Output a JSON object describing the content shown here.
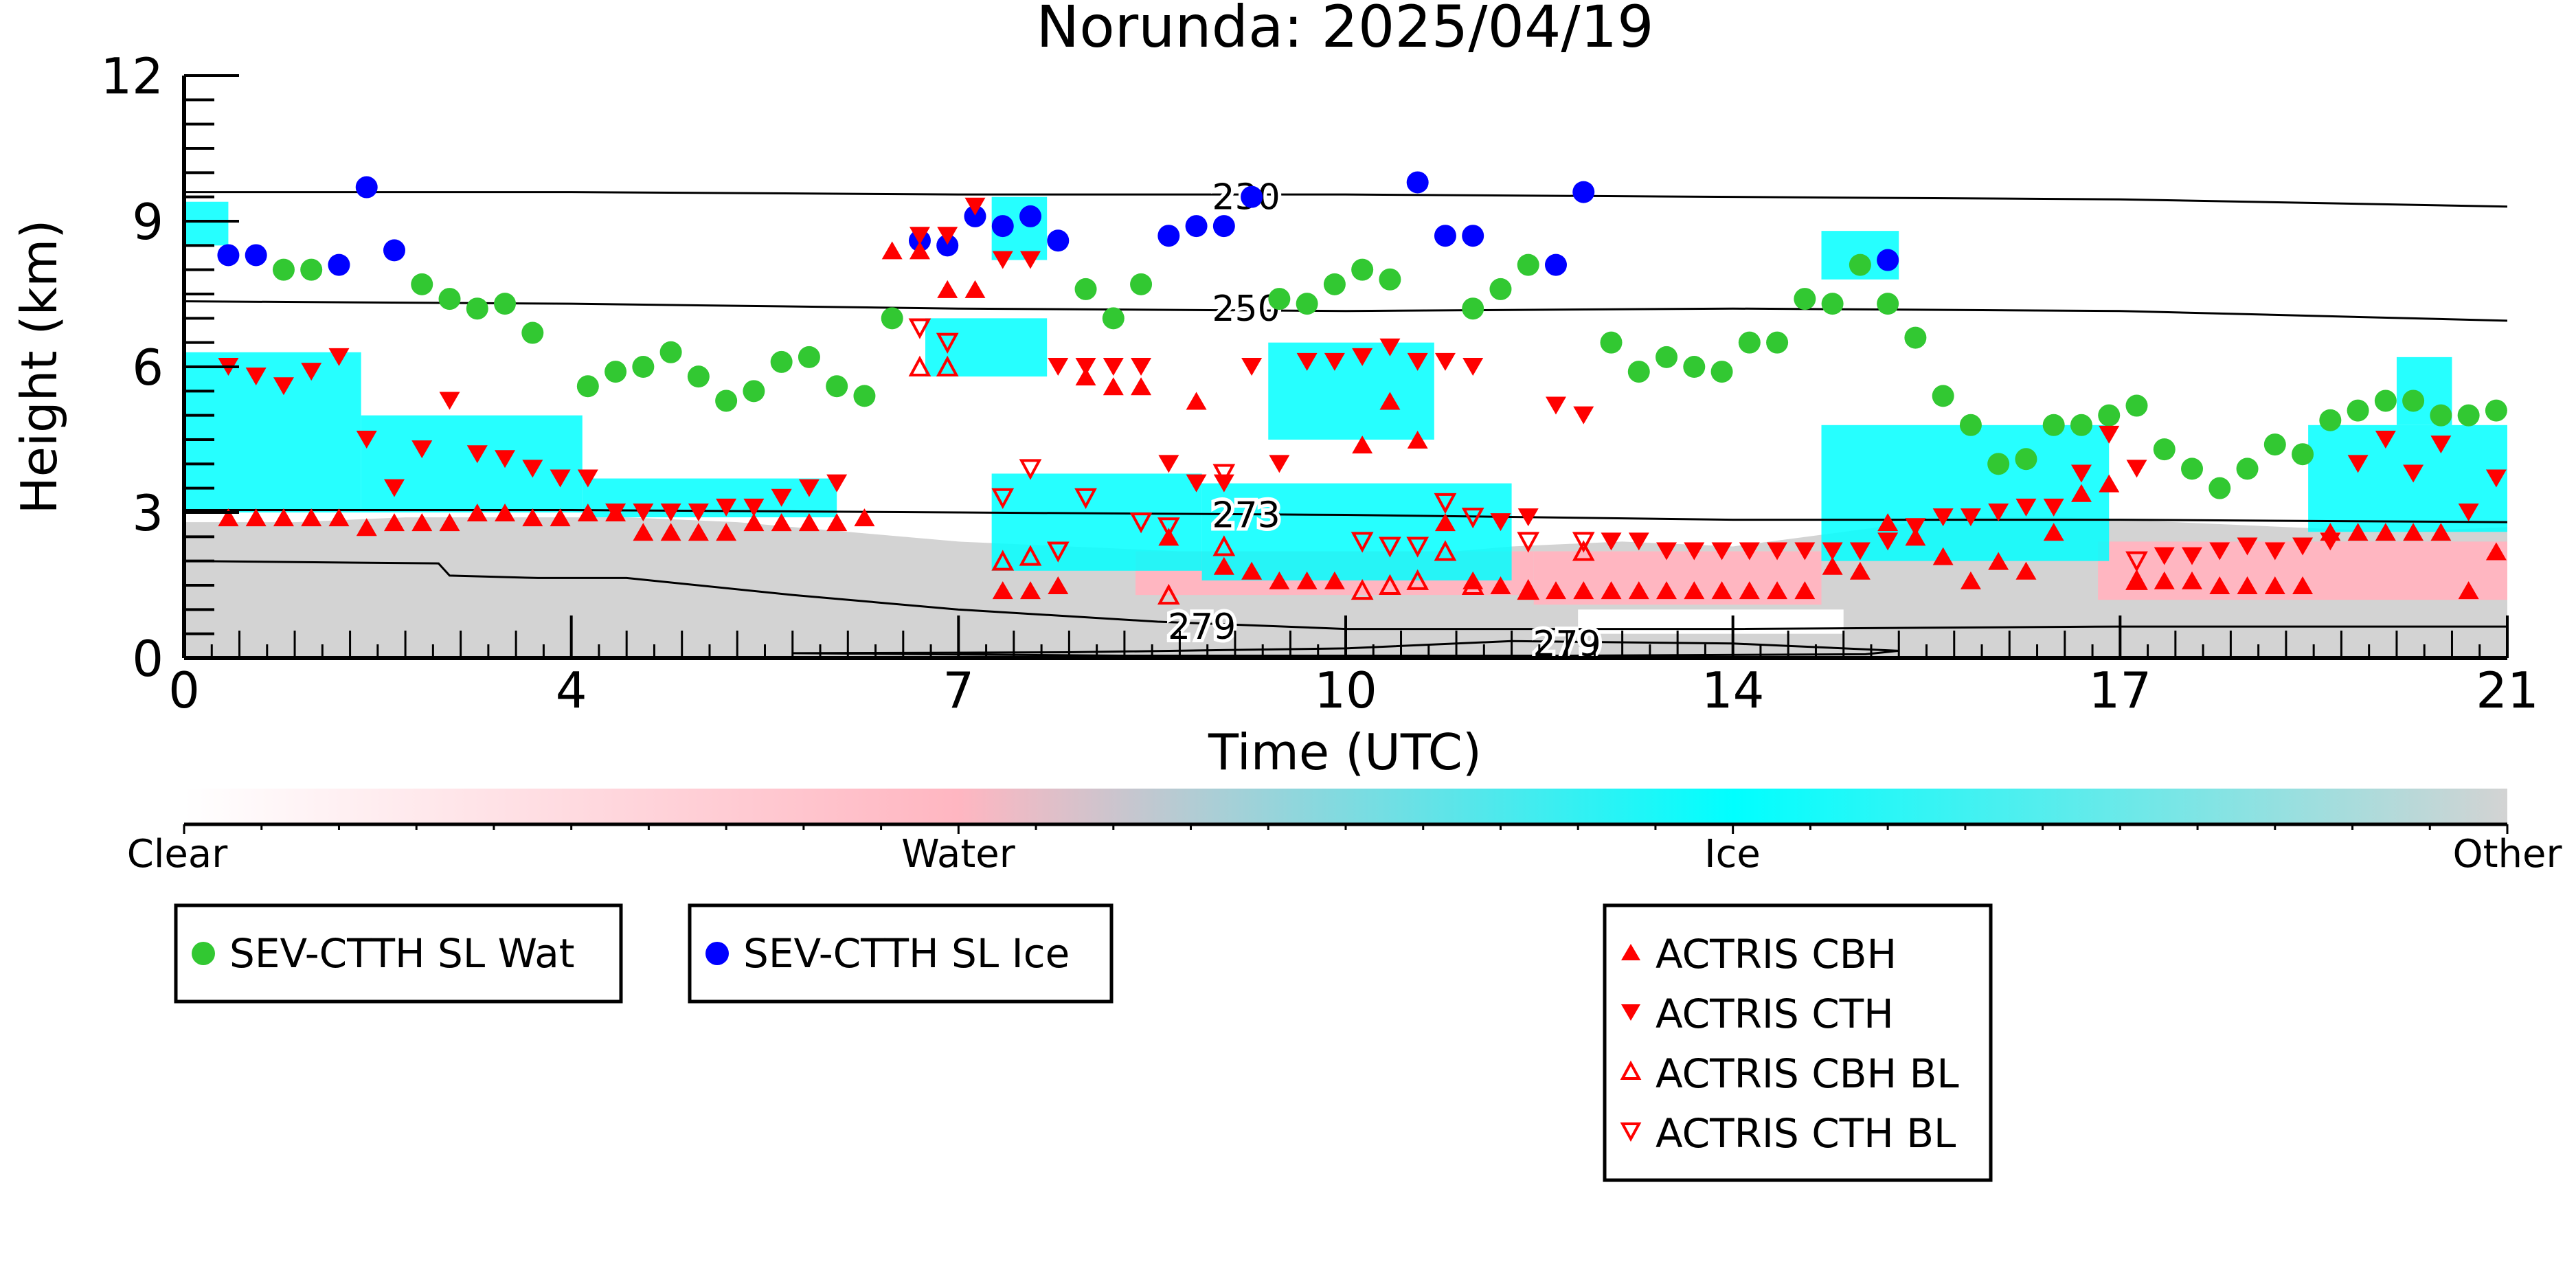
{
  "chart_data": {
    "type": "scatter",
    "title": "Norunda: 2025/04/19",
    "xlabel": "Time (UTC)",
    "ylabel": "Height (km)",
    "xlim": [
      0,
      21
    ],
    "ylim": [
      0,
      12
    ],
    "xticks": [
      {
        "value": 0,
        "label": "0"
      },
      {
        "value": 3.5,
        "label": "4"
      },
      {
        "value": 7,
        "label": "7"
      },
      {
        "value": 10.5,
        "label": "10"
      },
      {
        "value": 14,
        "label": "14"
      },
      {
        "value": 17.5,
        "label": "17"
      },
      {
        "value": 21,
        "label": "21"
      }
    ],
    "yticks": [
      0,
      3,
      6,
      9,
      12
    ],
    "grid": false,
    "background_classes": {
      "colorbar_labels": [
        "Clear",
        "Water",
        "Ice",
        "Other"
      ],
      "colors": {
        "clear": "#ffffff",
        "water": "#ffb6c1",
        "ice": "#00ffff",
        "other": "#d3d3d3"
      },
      "regions": [
        {
          "class": "other",
          "x": [
            0,
            21
          ],
          "y_top": [
            2.8,
            2.8,
            2.9,
            2.9,
            2.9,
            2.8,
            2.6,
            2.4,
            2.3,
            2.2,
            2.2,
            2.1,
            2.3,
            2.4,
            2.3,
            2.6,
            2.9,
            2.9,
            2.8,
            2.7,
            2.6,
            2.7
          ]
        },
        {
          "class": "water",
          "x": [
            8.6,
            12.2
          ],
          "y": [
            1.3,
            2.2
          ]
        },
        {
          "class": "water",
          "x": [
            12.2,
            14.8
          ],
          "y": [
            1.1,
            2.2
          ]
        },
        {
          "class": "water",
          "x": [
            17.3,
            21
          ],
          "y": [
            1.2,
            2.4
          ]
        },
        {
          "class": "clear",
          "x": [
            12.6,
            15.0
          ],
          "y": [
            0.5,
            1.0
          ]
        },
        {
          "class": "ice",
          "x": [
            0,
            0.4
          ],
          "y": [
            8.5,
            9.4
          ]
        },
        {
          "class": "ice",
          "x": [
            0,
            1.6
          ],
          "y": [
            3.0,
            6.3
          ]
        },
        {
          "class": "ice",
          "x": [
            1.6,
            3.6
          ],
          "y": [
            3.0,
            5.0
          ]
        },
        {
          "class": "ice",
          "x": [
            3.6,
            5.9
          ],
          "y": [
            2.9,
            3.7
          ]
        },
        {
          "class": "ice",
          "x": [
            6.7,
            7.8
          ],
          "y": [
            5.8,
            7.0
          ]
        },
        {
          "class": "ice",
          "x": [
            7.3,
            7.8
          ],
          "y": [
            8.2,
            9.5
          ]
        },
        {
          "class": "ice",
          "x": [
            7.3,
            9.2
          ],
          "y": [
            1.8,
            3.8
          ]
        },
        {
          "class": "ice",
          "x": [
            9.2,
            12.0
          ],
          "y": [
            1.6,
            3.6
          ]
        },
        {
          "class": "ice",
          "x": [
            9.8,
            11.3
          ],
          "y": [
            4.5,
            6.5
          ]
        },
        {
          "class": "ice",
          "x": [
            14.8,
            15.5
          ],
          "y": [
            7.8,
            8.8
          ]
        },
        {
          "class": "ice",
          "x": [
            14.8,
            17.4
          ],
          "y": [
            2.0,
            4.8
          ]
        },
        {
          "class": "ice",
          "x": [
            19.2,
            21
          ],
          "y": [
            2.6,
            4.8
          ]
        },
        {
          "class": "ice",
          "x": [
            20.0,
            20.5
          ],
          "y": [
            4.8,
            6.2
          ]
        }
      ]
    },
    "contours": [
      {
        "label": "230",
        "x": [
          0,
          3.5,
          7,
          10.5,
          14,
          17.5,
          21
        ],
        "y": [
          9.6,
          9.6,
          9.55,
          9.55,
          9.5,
          9.45,
          9.3
        ]
      },
      {
        "label": "250",
        "x": [
          0,
          3.5,
          7,
          10.5,
          14,
          17.5,
          21
        ],
        "y": [
          7.35,
          7.3,
          7.2,
          7.15,
          7.2,
          7.15,
          6.95
        ]
      },
      {
        "label": "273",
        "x": [
          0,
          3.5,
          7,
          10.5,
          14,
          17.5,
          21
        ],
        "y": [
          3.05,
          3.05,
          3.0,
          2.95,
          2.85,
          2.85,
          2.8
        ]
      },
      {
        "label": "279",
        "x": [
          0,
          2.3,
          2.4,
          3.2,
          4.0,
          5.5,
          7.0,
          8.8,
          10.5,
          12.5,
          14,
          17.5,
          21
        ],
        "y": [
          2.0,
          1.95,
          1.7,
          1.65,
          1.65,
          1.3,
          1.0,
          0.75,
          0.6,
          0.6,
          0.6,
          0.65,
          0.65
        ]
      },
      {
        "label": "279",
        "x": [
          5.5,
          8.0,
          10.5,
          12.0,
          14.0,
          15.5,
          15.2,
          12.5,
          10.5,
          8.5,
          5.5
        ],
        "y": [
          0.1,
          0.12,
          0.2,
          0.35,
          0.3,
          0.15,
          0.08,
          0.05,
          0.05,
          0.05,
          0.1
        ]
      }
    ],
    "contour_labels": [
      {
        "text": "230",
        "x": 9.6,
        "y": 9.5
      },
      {
        "text": "250",
        "x": 9.6,
        "y": 7.2
      },
      {
        "text": "273",
        "x": 9.6,
        "y": 2.95
      },
      {
        "text": "279",
        "x": 9.2,
        "y": 0.65
      },
      {
        "text": "279",
        "x": 12.5,
        "y": 0.3
      }
    ],
    "series": [
      {
        "name": "SEV-CTTH SL Wat",
        "marker": "circle",
        "color": "#32c832",
        "x": [
          0.9,
          1.15,
          2.15,
          2.4,
          2.65,
          2.9,
          3.15,
          3.65,
          3.9,
          4.15,
          4.4,
          4.65,
          4.9,
          5.15,
          5.4,
          5.65,
          5.9,
          6.15,
          6.4,
          8.15,
          8.4,
          8.65,
          9.9,
          10.15,
          10.4,
          10.65,
          10.9,
          11.65,
          11.9,
          12.15,
          12.9,
          13.15,
          13.4,
          13.65,
          13.9,
          14.15,
          14.4,
          14.65,
          14.9,
          15.15,
          15.4,
          15.65,
          15.9,
          16.15,
          16.4,
          16.65,
          16.9,
          17.15,
          17.4,
          17.65,
          17.9,
          18.15,
          18.4,
          18.65,
          18.9,
          19.15,
          19.4,
          19.65,
          19.9,
          20.15,
          20.4,
          20.65,
          20.9
        ],
        "y": [
          8.0,
          8.0,
          7.7,
          7.4,
          7.2,
          7.3,
          6.7,
          5.6,
          5.9,
          6.0,
          6.3,
          5.8,
          5.3,
          5.5,
          6.1,
          6.2,
          5.6,
          5.4,
          7.0,
          7.6,
          7.0,
          7.7,
          7.4,
          7.3,
          7.7,
          8.0,
          7.8,
          7.2,
          7.6,
          8.1,
          6.5,
          5.9,
          6.2,
          6.0,
          5.9,
          6.5,
          6.5,
          7.4,
          7.3,
          8.1,
          7.3,
          6.6,
          5.4,
          4.8,
          4.0,
          4.1,
          4.8,
          4.8,
          5.0,
          5.2,
          4.3,
          3.9,
          3.5,
          3.9,
          4.4,
          4.2,
          4.9,
          5.1,
          5.3,
          5.3,
          5.0,
          5.0,
          5.1
        ]
      },
      {
        "name": "SEV-CTTH SL Ice",
        "marker": "circle",
        "color": "#0000ff",
        "x": [
          0.4,
          0.65,
          1.4,
          1.65,
          1.9,
          6.65,
          6.9,
          7.15,
          7.4,
          7.65,
          7.9,
          8.9,
          9.15,
          9.4,
          9.65,
          11.15,
          11.4,
          11.65,
          12.4,
          12.65,
          15.4
        ],
        "y": [
          8.3,
          8.3,
          8.1,
          9.7,
          8.4,
          8.6,
          8.5,
          9.1,
          8.9,
          9.1,
          8.6,
          8.7,
          8.9,
          8.9,
          9.5,
          9.8,
          8.7,
          8.7,
          8.1,
          9.6,
          8.2
        ]
      },
      {
        "name": "ACTRIS CBH",
        "marker": "triangle-up",
        "color": "#ff0000",
        "filled": true,
        "x": [
          0.4,
          0.65,
          0.9,
          1.15,
          1.4,
          1.65,
          1.9,
          2.15,
          2.4,
          2.65,
          2.9,
          3.15,
          3.4,
          3.65,
          3.9,
          4.15,
          4.4,
          4.65,
          4.9,
          5.15,
          5.4,
          5.65,
          5.9,
          6.15,
          6.4,
          6.65,
          6.9,
          7.15,
          7.4,
          7.65,
          7.9,
          8.15,
          8.4,
          8.65,
          8.9,
          9.15,
          9.4,
          9.65,
          9.9,
          10.15,
          10.4,
          10.65,
          10.9,
          11.15,
          11.4,
          11.65,
          11.9,
          12.15,
          12.4,
          12.65,
          12.9,
          13.15,
          13.4,
          13.65,
          13.9,
          14.15,
          14.4,
          14.65,
          14.9,
          15.15,
          15.4,
          15.65,
          15.9,
          16.15,
          16.4,
          16.65,
          16.9,
          17.15,
          17.4,
          17.65,
          17.9,
          18.15,
          18.4,
          18.65,
          18.9,
          19.15,
          19.4,
          19.65,
          19.9,
          20.15,
          20.4,
          20.65,
          20.9
        ],
        "y": [
          2.9,
          2.9,
          2.9,
          2.9,
          2.9,
          2.7,
          2.8,
          2.8,
          2.8,
          3.0,
          3.0,
          2.9,
          2.9,
          3.0,
          3.0,
          2.6,
          2.6,
          2.6,
          2.6,
          2.8,
          2.8,
          2.8,
          2.8,
          2.9,
          8.4,
          8.4,
          7.6,
          7.6,
          1.4,
          1.4,
          1.5,
          5.8,
          5.6,
          5.6,
          2.5,
          5.3,
          1.9,
          1.8,
          1.6,
          1.6,
          1.6,
          4.4,
          5.3,
          4.5,
          2.8,
          1.6,
          1.5,
          1.4,
          1.4,
          1.4,
          1.4,
          1.4,
          1.4,
          1.4,
          1.4,
          1.4,
          1.4,
          1.4,
          1.9,
          1.8,
          2.8,
          2.5,
          2.1,
          1.6,
          2.0,
          1.8,
          2.6,
          3.4,
          3.6,
          1.6,
          1.6,
          1.6,
          1.5,
          1.5,
          1.5,
          1.5,
          2.6,
          2.6,
          2.6,
          2.6,
          2.6,
          1.4,
          2.2
        ]
      },
      {
        "name": "ACTRIS CTH",
        "marker": "triangle-down",
        "color": "#ff0000",
        "filled": true,
        "x": [
          0.4,
          0.65,
          0.9,
          1.15,
          1.4,
          1.65,
          1.9,
          2.15,
          2.4,
          2.65,
          2.9,
          3.15,
          3.4,
          3.65,
          3.9,
          4.15,
          4.4,
          4.65,
          4.9,
          5.15,
          5.4,
          5.65,
          5.9,
          6.65,
          6.9,
          7.15,
          7.4,
          7.65,
          7.9,
          8.15,
          8.4,
          8.65,
          8.9,
          9.15,
          9.4,
          9.65,
          9.9,
          10.15,
          10.4,
          10.65,
          10.9,
          11.15,
          11.4,
          11.65,
          11.9,
          12.15,
          12.4,
          12.65,
          12.9,
          13.15,
          13.4,
          13.65,
          13.9,
          14.15,
          14.4,
          14.65,
          14.9,
          15.15,
          15.4,
          15.65,
          15.9,
          16.15,
          16.4,
          16.65,
          16.9,
          17.15,
          17.4,
          17.65,
          17.9,
          18.15,
          18.4,
          18.65,
          18.9,
          19.15,
          19.4,
          19.65,
          19.9,
          20.15,
          20.4,
          20.65,
          20.9
        ],
        "y": [
          6.0,
          5.8,
          5.6,
          5.9,
          6.2,
          4.5,
          3.5,
          4.3,
          5.3,
          4.2,
          4.1,
          3.9,
          3.7,
          3.7,
          3.0,
          3.0,
          3.0,
          3.0,
          3.1,
          3.1,
          3.3,
          3.5,
          3.6,
          8.7,
          8.7,
          9.3,
          8.2,
          8.2,
          6.0,
          6.0,
          6.0,
          6.0,
          4.0,
          3.6,
          3.6,
          6.0,
          4.0,
          6.1,
          6.1,
          6.2,
          6.4,
          6.1,
          6.1,
          6.0,
          2.8,
          2.9,
          5.2,
          5.0,
          2.4,
          2.4,
          2.2,
          2.2,
          2.2,
          2.2,
          2.2,
          2.2,
          2.2,
          2.2,
          2.4,
          2.7,
          2.9,
          2.9,
          3.0,
          3.1,
          3.1,
          3.8,
          4.6,
          3.9,
          2.1,
          2.1,
          2.2,
          2.3,
          2.2,
          2.3,
          2.4,
          4.0,
          4.5,
          3.8,
          4.4,
          3.0,
          3.7
        ]
      },
      {
        "name": "ACTRIS CBH BL",
        "marker": "triangle-up",
        "color": "#ff0000",
        "filled": false,
        "x": [
          6.65,
          6.9,
          7.4,
          7.65,
          8.9,
          9.4,
          10.65,
          10.9,
          11.15,
          11.4,
          11.65,
          12.15,
          12.65,
          17.65
        ],
        "y": [
          6.0,
          6.0,
          2.0,
          2.1,
          1.3,
          2.3,
          1.4,
          1.5,
          1.6,
          2.2,
          1.5,
          1.4,
          2.2,
          1.6
        ]
      },
      {
        "name": "ACTRIS CTH BL",
        "marker": "triangle-down",
        "color": "#ff0000",
        "filled": false,
        "x": [
          6.65,
          6.9,
          7.4,
          7.65,
          7.9,
          8.15,
          8.65,
          8.9,
          9.4,
          10.65,
          10.9,
          11.15,
          11.4,
          11.65,
          12.15,
          12.65,
          17.65
        ],
        "y": [
          6.8,
          6.5,
          3.3,
          3.9,
          2.2,
          3.3,
          2.8,
          2.7,
          3.8,
          2.4,
          2.3,
          2.3,
          3.2,
          2.9,
          2.4,
          2.4,
          2.0
        ]
      }
    ],
    "legends": [
      {
        "entries": [
          "SEV-CTTH SL Wat"
        ]
      },
      {
        "entries": [
          "SEV-CTTH SL Ice"
        ]
      },
      {
        "entries": [
          "ACTRIS CBH",
          "ACTRIS CTH",
          "ACTRIS CBH BL",
          "ACTRIS CTH BL"
        ]
      }
    ]
  }
}
